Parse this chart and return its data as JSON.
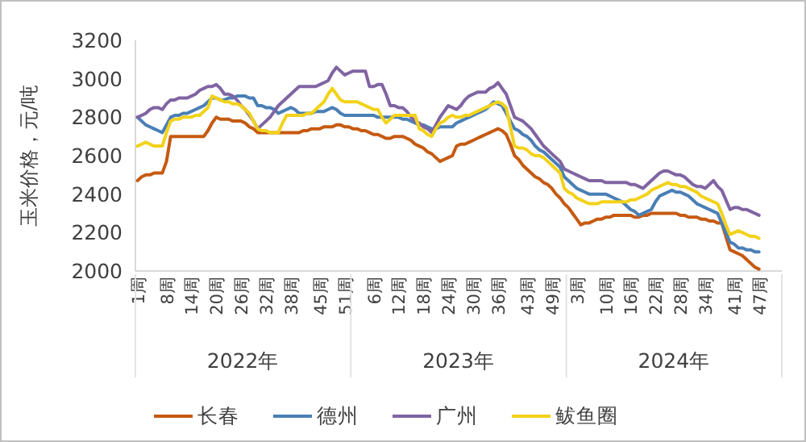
{
  "chart_data": {
    "type": "line",
    "ylabel": "玉米价格，元/吨",
    "ylim": [
      2000,
      3200
    ],
    "yticks": [
      2000,
      2200,
      2400,
      2600,
      2800,
      3000,
      3200
    ],
    "categories": [
      "1周",
      null,
      null,
      null,
      null,
      null,
      null,
      "8周",
      null,
      null,
      null,
      null,
      null,
      "14周",
      null,
      null,
      null,
      null,
      null,
      "20周",
      null,
      null,
      null,
      null,
      null,
      "26周",
      null,
      null,
      null,
      null,
      null,
      "32周",
      null,
      null,
      null,
      null,
      null,
      "38周",
      null,
      null,
      null,
      null,
      null,
      null,
      "45周",
      null,
      null,
      null,
      null,
      null,
      "51周",
      null,
      null,
      null,
      null,
      null,
      null,
      "6周",
      null,
      null,
      null,
      null,
      null,
      "12周",
      null,
      null,
      null,
      null,
      null,
      "18周",
      null,
      null,
      null,
      null,
      null,
      "24周",
      null,
      null,
      null,
      null,
      null,
      "30周",
      null,
      null,
      null,
      null,
      null,
      "36周",
      null,
      null,
      null,
      null,
      null,
      null,
      "43周",
      null,
      null,
      null,
      null,
      null,
      "49周",
      null,
      null,
      null,
      null,
      null,
      "3周",
      null,
      null,
      null,
      null,
      null,
      null,
      "10周",
      null,
      null,
      null,
      null,
      null,
      "16周",
      null,
      null,
      null,
      null,
      null,
      "22周",
      null,
      null,
      null,
      null,
      null,
      "28周",
      null,
      null,
      null,
      null,
      null,
      "34周",
      null,
      null,
      null,
      null,
      null,
      null,
      "41周",
      null,
      null,
      null,
      null,
      null,
      "47周",
      null,
      null,
      null,
      null,
      null
    ],
    "annotations": [
      "2022年",
      "2023年",
      "2024年"
    ],
    "legend": "bottom",
    "series": [
      {
        "name": "长春",
        "color": "#c55a11",
        "values": [
          2470,
          2490,
          2500,
          2500,
          2510,
          2510,
          2510,
          2570,
          2700,
          2700,
          2700,
          2700,
          2700,
          2700,
          2700,
          2700,
          2700,
          2730,
          2770,
          2800,
          2790,
          2790,
          2790,
          2780,
          2780,
          2780,
          2770,
          2750,
          2740,
          2720,
          2720,
          2720,
          2720,
          2720,
          2720,
          2720,
          2720,
          2720,
          2720,
          2720,
          2730,
          2730,
          2740,
          2740,
          2740,
          2750,
          2750,
          2750,
          2760,
          2760,
          2750,
          2750,
          2740,
          2740,
          2730,
          2730,
          2720,
          2710,
          2710,
          2700,
          2690,
          2690,
          2700,
          2700,
          2700,
          2690,
          2680,
          2660,
          2650,
          2640,
          2620,
          2610,
          2590,
          2570,
          2580,
          2590,
          2600,
          2650,
          2660,
          2660,
          2670,
          2680,
          2690,
          2700,
          2710,
          2720,
          2730,
          2740,
          2730,
          2710,
          2660,
          2600,
          2580,
          2550,
          2530,
          2510,
          2490,
          2480,
          2460,
          2450,
          2430,
          2400,
          2380,
          2350,
          2330,
          2300,
          2270,
          2240,
          2250,
          2250,
          2260,
          2270,
          2270,
          2280,
          2280,
          2290,
          2290,
          2290,
          2290,
          2290,
          2280,
          2280,
          2290,
          2290,
          2300,
          2300,
          2300,
          2300,
          2300,
          2300,
          2300,
          2290,
          2290,
          2280,
          2280,
          2280,
          2270,
          2270,
          2260,
          2260,
          2250,
          2250,
          2180,
          2110,
          2100,
          2090,
          2080,
          2060,
          2040,
          2020,
          2010,
          null,
          null,
          null,
          null,
          null
        ]
      },
      {
        "name": "德州",
        "color": "#4a7fb5",
        "values": [
          2800,
          2780,
          2760,
          2750,
          2740,
          2730,
          2720,
          2760,
          2800,
          2810,
          2810,
          2820,
          2820,
          2830,
          2840,
          2850,
          2860,
          2880,
          2900,
          2900,
          2890,
          2890,
          2900,
          2900,
          2910,
          2910,
          2910,
          2900,
          2900,
          2860,
          2860,
          2850,
          2850,
          2840,
          2820,
          2830,
          2840,
          2850,
          2840,
          2820,
          2820,
          2820,
          2820,
          2830,
          2830,
          2830,
          2840,
          2850,
          2840,
          2820,
          2810,
          2810,
          2810,
          2810,
          2810,
          2810,
          2810,
          2810,
          2800,
          2800,
          2800,
          2800,
          2800,
          2800,
          2790,
          2790,
          2780,
          2770,
          2760,
          2760,
          2750,
          2740,
          2740,
          2750,
          2750,
          2750,
          2750,
          2770,
          2780,
          2790,
          2800,
          2810,
          2820,
          2830,
          2840,
          2860,
          2880,
          2870,
          2860,
          2820,
          2780,
          2740,
          2730,
          2710,
          2700,
          2680,
          2650,
          2630,
          2620,
          2600,
          2580,
          2560,
          2540,
          2490,
          2470,
          2450,
          2430,
          2420,
          2410,
          2400,
          2400,
          2400,
          2400,
          2400,
          2390,
          2380,
          2370,
          2360,
          2340,
          2320,
          2310,
          2290,
          2300,
          2310,
          2320,
          2360,
          2390,
          2400,
          2410,
          2420,
          2410,
          2410,
          2400,
          2390,
          2370,
          2350,
          2340,
          2330,
          2320,
          2310,
          2300,
          2250,
          2200,
          2150,
          2140,
          2120,
          2120,
          2110,
          2110,
          2100,
          2100,
          null,
          null,
          null,
          null,
          null
        ]
      },
      {
        "name": "广州",
        "color": "#8064a2",
        "values": [
          2800,
          2810,
          2820,
          2840,
          2850,
          2850,
          2840,
          2870,
          2890,
          2890,
          2900,
          2900,
          2900,
          2910,
          2920,
          2940,
          2950,
          2960,
          2960,
          2970,
          2950,
          2920,
          2920,
          2910,
          2890,
          2860,
          2840,
          2810,
          2780,
          2740,
          2760,
          2780,
          2800,
          2830,
          2860,
          2880,
          2900,
          2920,
          2940,
          2960,
          2960,
          2960,
          2960,
          2960,
          2970,
          2980,
          2990,
          3030,
          3060,
          3040,
          3020,
          3030,
          3040,
          3040,
          3040,
          3040,
          2960,
          2960,
          2970,
          2970,
          2920,
          2860,
          2860,
          2850,
          2850,
          2830,
          2800,
          2780,
          2770,
          2750,
          2740,
          2720,
          2760,
          2800,
          2830,
          2860,
          2850,
          2840,
          2860,
          2890,
          2910,
          2920,
          2930,
          2930,
          2930,
          2950,
          2960,
          2980,
          2950,
          2920,
          2860,
          2800,
          2790,
          2780,
          2760,
          2740,
          2710,
          2680,
          2650,
          2630,
          2610,
          2590,
          2570,
          2530,
          2520,
          2510,
          2500,
          2490,
          2480,
          2470,
          2470,
          2470,
          2470,
          2460,
          2460,
          2460,
          2460,
          2460,
          2460,
          2450,
          2450,
          2440,
          2430,
          2450,
          2470,
          2490,
          2510,
          2520,
          2520,
          2510,
          2500,
          2500,
          2490,
          2470,
          2450,
          2440,
          2440,
          2430,
          2450,
          2470,
          2440,
          2420,
          2370,
          2320,
          2330,
          2330,
          2320,
          2320,
          2310,
          2300,
          2290,
          null,
          null,
          null,
          null,
          null
        ]
      },
      {
        "name": "鲅鱼圈",
        "color": "#f2d21b",
        "values": [
          2650,
          2660,
          2670,
          2660,
          2650,
          2650,
          2650,
          2720,
          2780,
          2790,
          2790,
          2800,
          2800,
          2800,
          2810,
          2810,
          2830,
          2850,
          2910,
          2900,
          2890,
          2880,
          2880,
          2870,
          2870,
          2860,
          2840,
          2820,
          2780,
          2740,
          2730,
          2730,
          2720,
          2720,
          2720,
          2770,
          2810,
          2810,
          2810,
          2810,
          2810,
          2820,
          2820,
          2840,
          2860,
          2880,
          2920,
          2950,
          2920,
          2890,
          2880,
          2880,
          2880,
          2880,
          2870,
          2860,
          2850,
          2840,
          2840,
          2800,
          2770,
          2790,
          2810,
          2810,
          2810,
          2810,
          2810,
          2810,
          2740,
          2730,
          2710,
          2700,
          2740,
          2770,
          2780,
          2800,
          2810,
          2800,
          2800,
          2810,
          2810,
          2820,
          2830,
          2840,
          2850,
          2860,
          2870,
          2880,
          2870,
          2850,
          2750,
          2650,
          2640,
          2640,
          2630,
          2610,
          2600,
          2600,
          2590,
          2570,
          2550,
          2530,
          2510,
          2430,
          2410,
          2400,
          2380,
          2370,
          2360,
          2350,
          2350,
          2350,
          2360,
          2360,
          2360,
          2360,
          2360,
          2360,
          2360,
          2370,
          2370,
          2380,
          2390,
          2400,
          2420,
          2430,
          2440,
          2450,
          2460,
          2450,
          2450,
          2440,
          2440,
          2430,
          2420,
          2410,
          2390,
          2380,
          2370,
          2360,
          2350,
          2300,
          2240,
          2190,
          2200,
          2210,
          2200,
          2190,
          2180,
          2180,
          2170,
          null,
          null,
          null,
          null,
          null
        ]
      }
    ]
  }
}
